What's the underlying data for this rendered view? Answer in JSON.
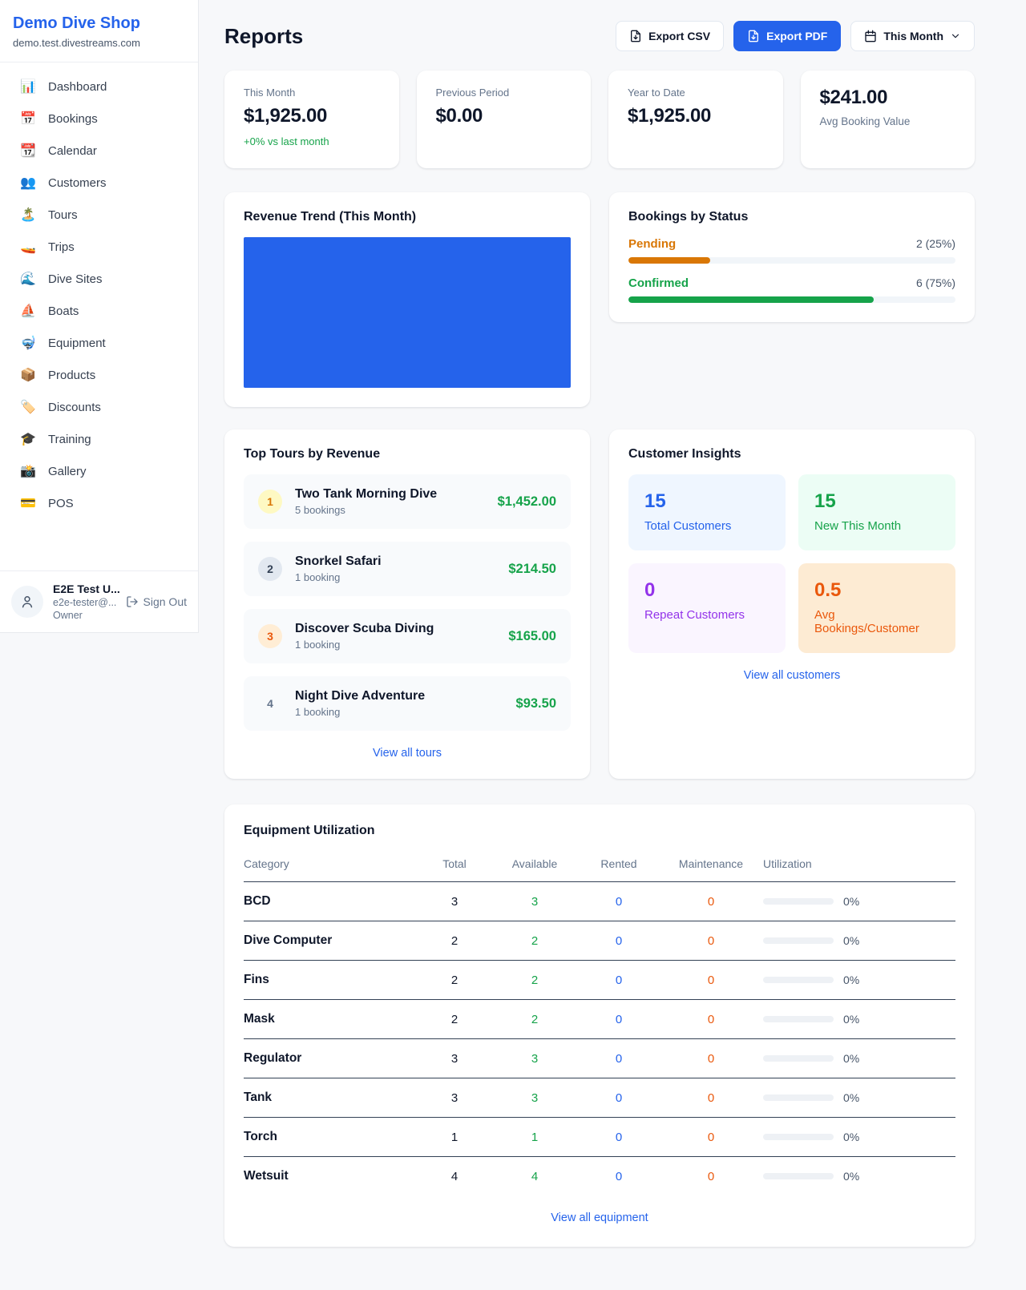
{
  "sidebar": {
    "shop_name": "Demo Dive Shop",
    "shop_domain": "demo.test.divestreams.com",
    "items": [
      {
        "icon": "📊",
        "label": "Dashboard"
      },
      {
        "icon": "📅",
        "label": "Bookings"
      },
      {
        "icon": "📆",
        "label": "Calendar"
      },
      {
        "icon": "👥",
        "label": "Customers"
      },
      {
        "icon": "🏝️",
        "label": "Tours"
      },
      {
        "icon": "🚤",
        "label": "Trips"
      },
      {
        "icon": "🌊",
        "label": "Dive Sites"
      },
      {
        "icon": "⛵",
        "label": "Boats"
      },
      {
        "icon": "🤿",
        "label": "Equipment"
      },
      {
        "icon": "📦",
        "label": "Products"
      },
      {
        "icon": "🏷️",
        "label": "Discounts"
      },
      {
        "icon": "🎓",
        "label": "Training"
      },
      {
        "icon": "📸",
        "label": "Gallery"
      },
      {
        "icon": "💳",
        "label": "POS"
      }
    ],
    "user": {
      "name": "E2E Test U...",
      "email": "e2e-tester@...",
      "role": "Owner",
      "sign_out": "Sign Out"
    }
  },
  "header": {
    "title": "Reports",
    "export_csv": "Export CSV",
    "export_pdf": "Export PDF",
    "period": "This Month"
  },
  "stats": [
    {
      "label": "This Month",
      "value": "$1,925.00",
      "delta": "+0% vs last month"
    },
    {
      "label": "Previous Period",
      "value": "$0.00"
    },
    {
      "label": "Year to Date",
      "value": "$1,925.00"
    },
    {
      "label": "Avg Booking Value",
      "value": "$241.00"
    }
  ],
  "revenue_trend": {
    "title": "Revenue Trend (This Month)",
    "bar_color": "#2563eb"
  },
  "chart_data": {
    "type": "bar",
    "title": "Revenue Trend (This Month)",
    "categories": [
      "This Month"
    ],
    "values": [
      1925.0
    ],
    "xlabel": "",
    "ylabel": "",
    "note": "single full-width bar filling entire plot area, no axes or labels",
    "bar_color": "#2563eb"
  },
  "bookings_by_status": {
    "title": "Bookings by Status",
    "rows": [
      {
        "label": "Pending",
        "count": "2 (25%)",
        "pct": 25
      },
      {
        "label": "Confirmed",
        "count": "6 (75%)",
        "pct": 75
      }
    ]
  },
  "top_tours": {
    "title": "Top Tours by Revenue",
    "rows": [
      {
        "rank": "1",
        "name": "Two Tank Morning Dive",
        "bookings": "5 bookings",
        "revenue": "$1,452.00"
      },
      {
        "rank": "2",
        "name": "Snorkel Safari",
        "bookings": "1 booking",
        "revenue": "$214.50"
      },
      {
        "rank": "3",
        "name": "Discover Scuba Diving",
        "bookings": "1 booking",
        "revenue": "$165.00"
      },
      {
        "rank": "4",
        "name": "Night Dive Adventure",
        "bookings": "1 booking",
        "revenue": "$93.50"
      }
    ],
    "view_all": "View all tours"
  },
  "customer_insights": {
    "title": "Customer Insights",
    "tiles": [
      {
        "value": "15",
        "label": "Total Customers"
      },
      {
        "value": "15",
        "label": "New This Month"
      },
      {
        "value": "0",
        "label": "Repeat Customers"
      },
      {
        "value": "0.5",
        "label": "Avg Bookings/Customer"
      }
    ],
    "view_all": "View all customers"
  },
  "equipment": {
    "title": "Equipment Utilization",
    "columns": [
      "Category",
      "Total",
      "Available",
      "Rented",
      "Maintenance",
      "Utilization"
    ],
    "rows": [
      {
        "category": "BCD",
        "total": "3",
        "available": "3",
        "rented": "0",
        "maintenance": "0",
        "utilization": "0%",
        "utilization_pct": 0
      },
      {
        "category": "Dive Computer",
        "total": "2",
        "available": "2",
        "rented": "0",
        "maintenance": "0",
        "utilization": "0%",
        "utilization_pct": 0
      },
      {
        "category": "Fins",
        "total": "2",
        "available": "2",
        "rented": "0",
        "maintenance": "0",
        "utilization": "0%",
        "utilization_pct": 0
      },
      {
        "category": "Mask",
        "total": "2",
        "available": "2",
        "rented": "0",
        "maintenance": "0",
        "utilization": "0%",
        "utilization_pct": 0
      },
      {
        "category": "Regulator",
        "total": "3",
        "available": "3",
        "rented": "0",
        "maintenance": "0",
        "utilization": "0%",
        "utilization_pct": 0
      },
      {
        "category": "Tank",
        "total": "3",
        "available": "3",
        "rented": "0",
        "maintenance": "0",
        "utilization": "0%",
        "utilization_pct": 0
      },
      {
        "category": "Torch",
        "total": "1",
        "available": "1",
        "rented": "0",
        "maintenance": "0",
        "utilization": "0%",
        "utilization_pct": 0
      },
      {
        "category": "Wetsuit",
        "total": "4",
        "available": "4",
        "rented": "0",
        "maintenance": "0",
        "utilization": "0%",
        "utilization_pct": 0
      }
    ],
    "view_all": "View all equipment"
  }
}
